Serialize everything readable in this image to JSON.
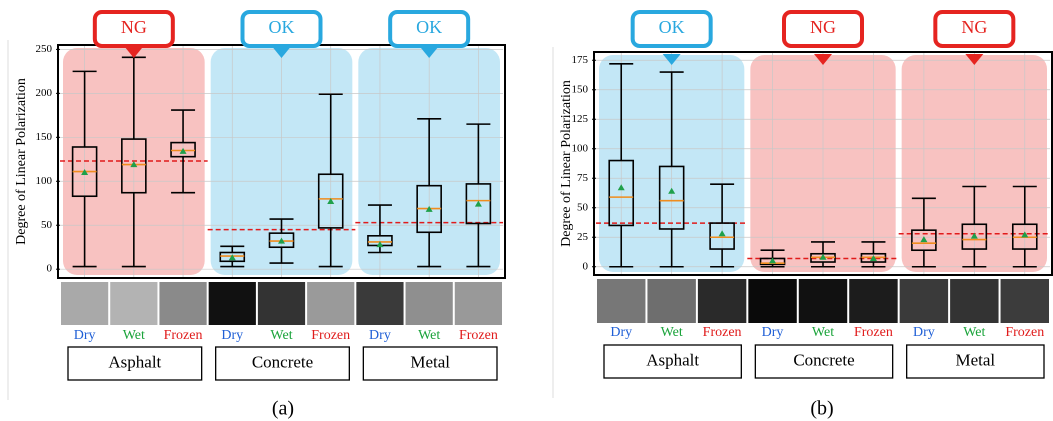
{
  "chart_data": [
    {
      "type": "box",
      "panel_label": "(a)",
      "ylabel": "Degree of Linear Polarization",
      "ylim": [
        -10,
        255
      ],
      "yticks": [
        0,
        50,
        100,
        150,
        200,
        250
      ],
      "grid": true,
      "categories": [
        "Dry",
        "Wet",
        "Frozen",
        "Dry",
        "Wet",
        "Frozen",
        "Dry",
        "Wet",
        "Frozen"
      ],
      "category_colors": [
        "#1f5fd6",
        "#1aa33a",
        "#e01b1b",
        "#1f5fd6",
        "#1aa33a",
        "#e01b1b",
        "#1f5fd6",
        "#1aa33a",
        "#e01b1b"
      ],
      "groups": [
        {
          "name": "Asphalt",
          "verdict": "NG",
          "color": "#e52420",
          "threshold": 123
        },
        {
          "name": "Concrete",
          "verdict": "OK",
          "color": "#29a8df",
          "threshold": 45
        },
        {
          "name": "Metal",
          "verdict": "OK",
          "color": "#29a8df",
          "threshold": 53
        }
      ],
      "boxes": {
        "whisker_low": [
          3,
          3,
          87,
          3,
          7,
          3,
          19,
          3,
          3
        ],
        "q1": [
          83,
          87,
          128,
          9,
          25,
          47,
          27,
          42,
          52
        ],
        "median": [
          111,
          119,
          135,
          15,
          32,
          80,
          31,
          69,
          78
        ],
        "q3": [
          139,
          148,
          144,
          19,
          41,
          108,
          38,
          95,
          97
        ],
        "whisker_high": [
          225,
          241,
          181,
          26,
          57,
          199,
          73,
          171,
          165
        ],
        "mean": [
          110,
          119,
          134,
          13,
          32,
          77,
          28,
          68,
          74
        ]
      }
    },
    {
      "type": "box",
      "panel_label": "(b)",
      "ylabel": "Degree of Linear Polarization",
      "ylim": [
        -7,
        182
      ],
      "yticks": [
        0,
        25,
        50,
        75,
        100,
        125,
        150,
        175
      ],
      "grid": true,
      "categories": [
        "Dry",
        "Wet",
        "Frozen",
        "Dry",
        "Wet",
        "Frozen",
        "Dry",
        "Wet",
        "Frozen"
      ],
      "category_colors": [
        "#1f5fd6",
        "#1aa33a",
        "#e01b1b",
        "#1f5fd6",
        "#1aa33a",
        "#e01b1b",
        "#1f5fd6",
        "#1aa33a",
        "#e01b1b"
      ],
      "groups": [
        {
          "name": "Asphalt",
          "verdict": "OK",
          "color": "#29a8df",
          "threshold": 37
        },
        {
          "name": "Concrete",
          "verdict": "NG",
          "color": "#e52420",
          "threshold": 7
        },
        {
          "name": "Metal",
          "verdict": "NG",
          "color": "#e52420",
          "threshold": 28
        }
      ],
      "boxes": {
        "whisker_low": [
          0,
          0,
          0,
          0,
          0,
          0,
          0,
          0,
          0
        ],
        "q1": [
          35,
          32,
          15,
          2,
          4,
          4,
          14,
          15,
          15
        ],
        "median": [
          59,
          56,
          25,
          3,
          8,
          8,
          20,
          23,
          25
        ],
        "q3": [
          90,
          85,
          37,
          7,
          11,
          11,
          31,
          36,
          36
        ],
        "whisker_high": [
          172,
          165,
          70,
          14,
          21,
          21,
          58,
          68,
          68
        ],
        "mean": [
          67,
          64,
          28,
          5,
          8,
          7,
          23,
          26,
          27
        ]
      }
    }
  ]
}
